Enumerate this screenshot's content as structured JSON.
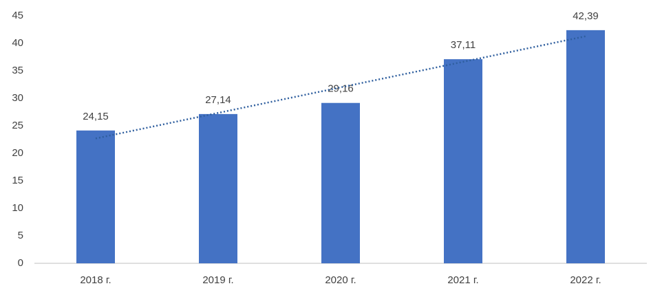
{
  "chart_data": {
    "type": "bar",
    "categories": [
      "2018 г.",
      "2019 г.",
      "2020 г.",
      "2021 г.",
      "2022 г."
    ],
    "values": [
      24.15,
      27.14,
      29.16,
      37.11,
      42.39
    ],
    "value_labels": [
      "24,15",
      "27,14",
      "29,16",
      "37,11",
      "42,39"
    ],
    "color": "#4472c4",
    "ylim": [
      0,
      45
    ],
    "yticks": [
      0,
      5,
      10,
      15,
      20,
      25,
      30,
      35,
      40,
      45
    ],
    "grid": false,
    "trendline": "linear",
    "trendline_color": "#2e5e9e"
  }
}
